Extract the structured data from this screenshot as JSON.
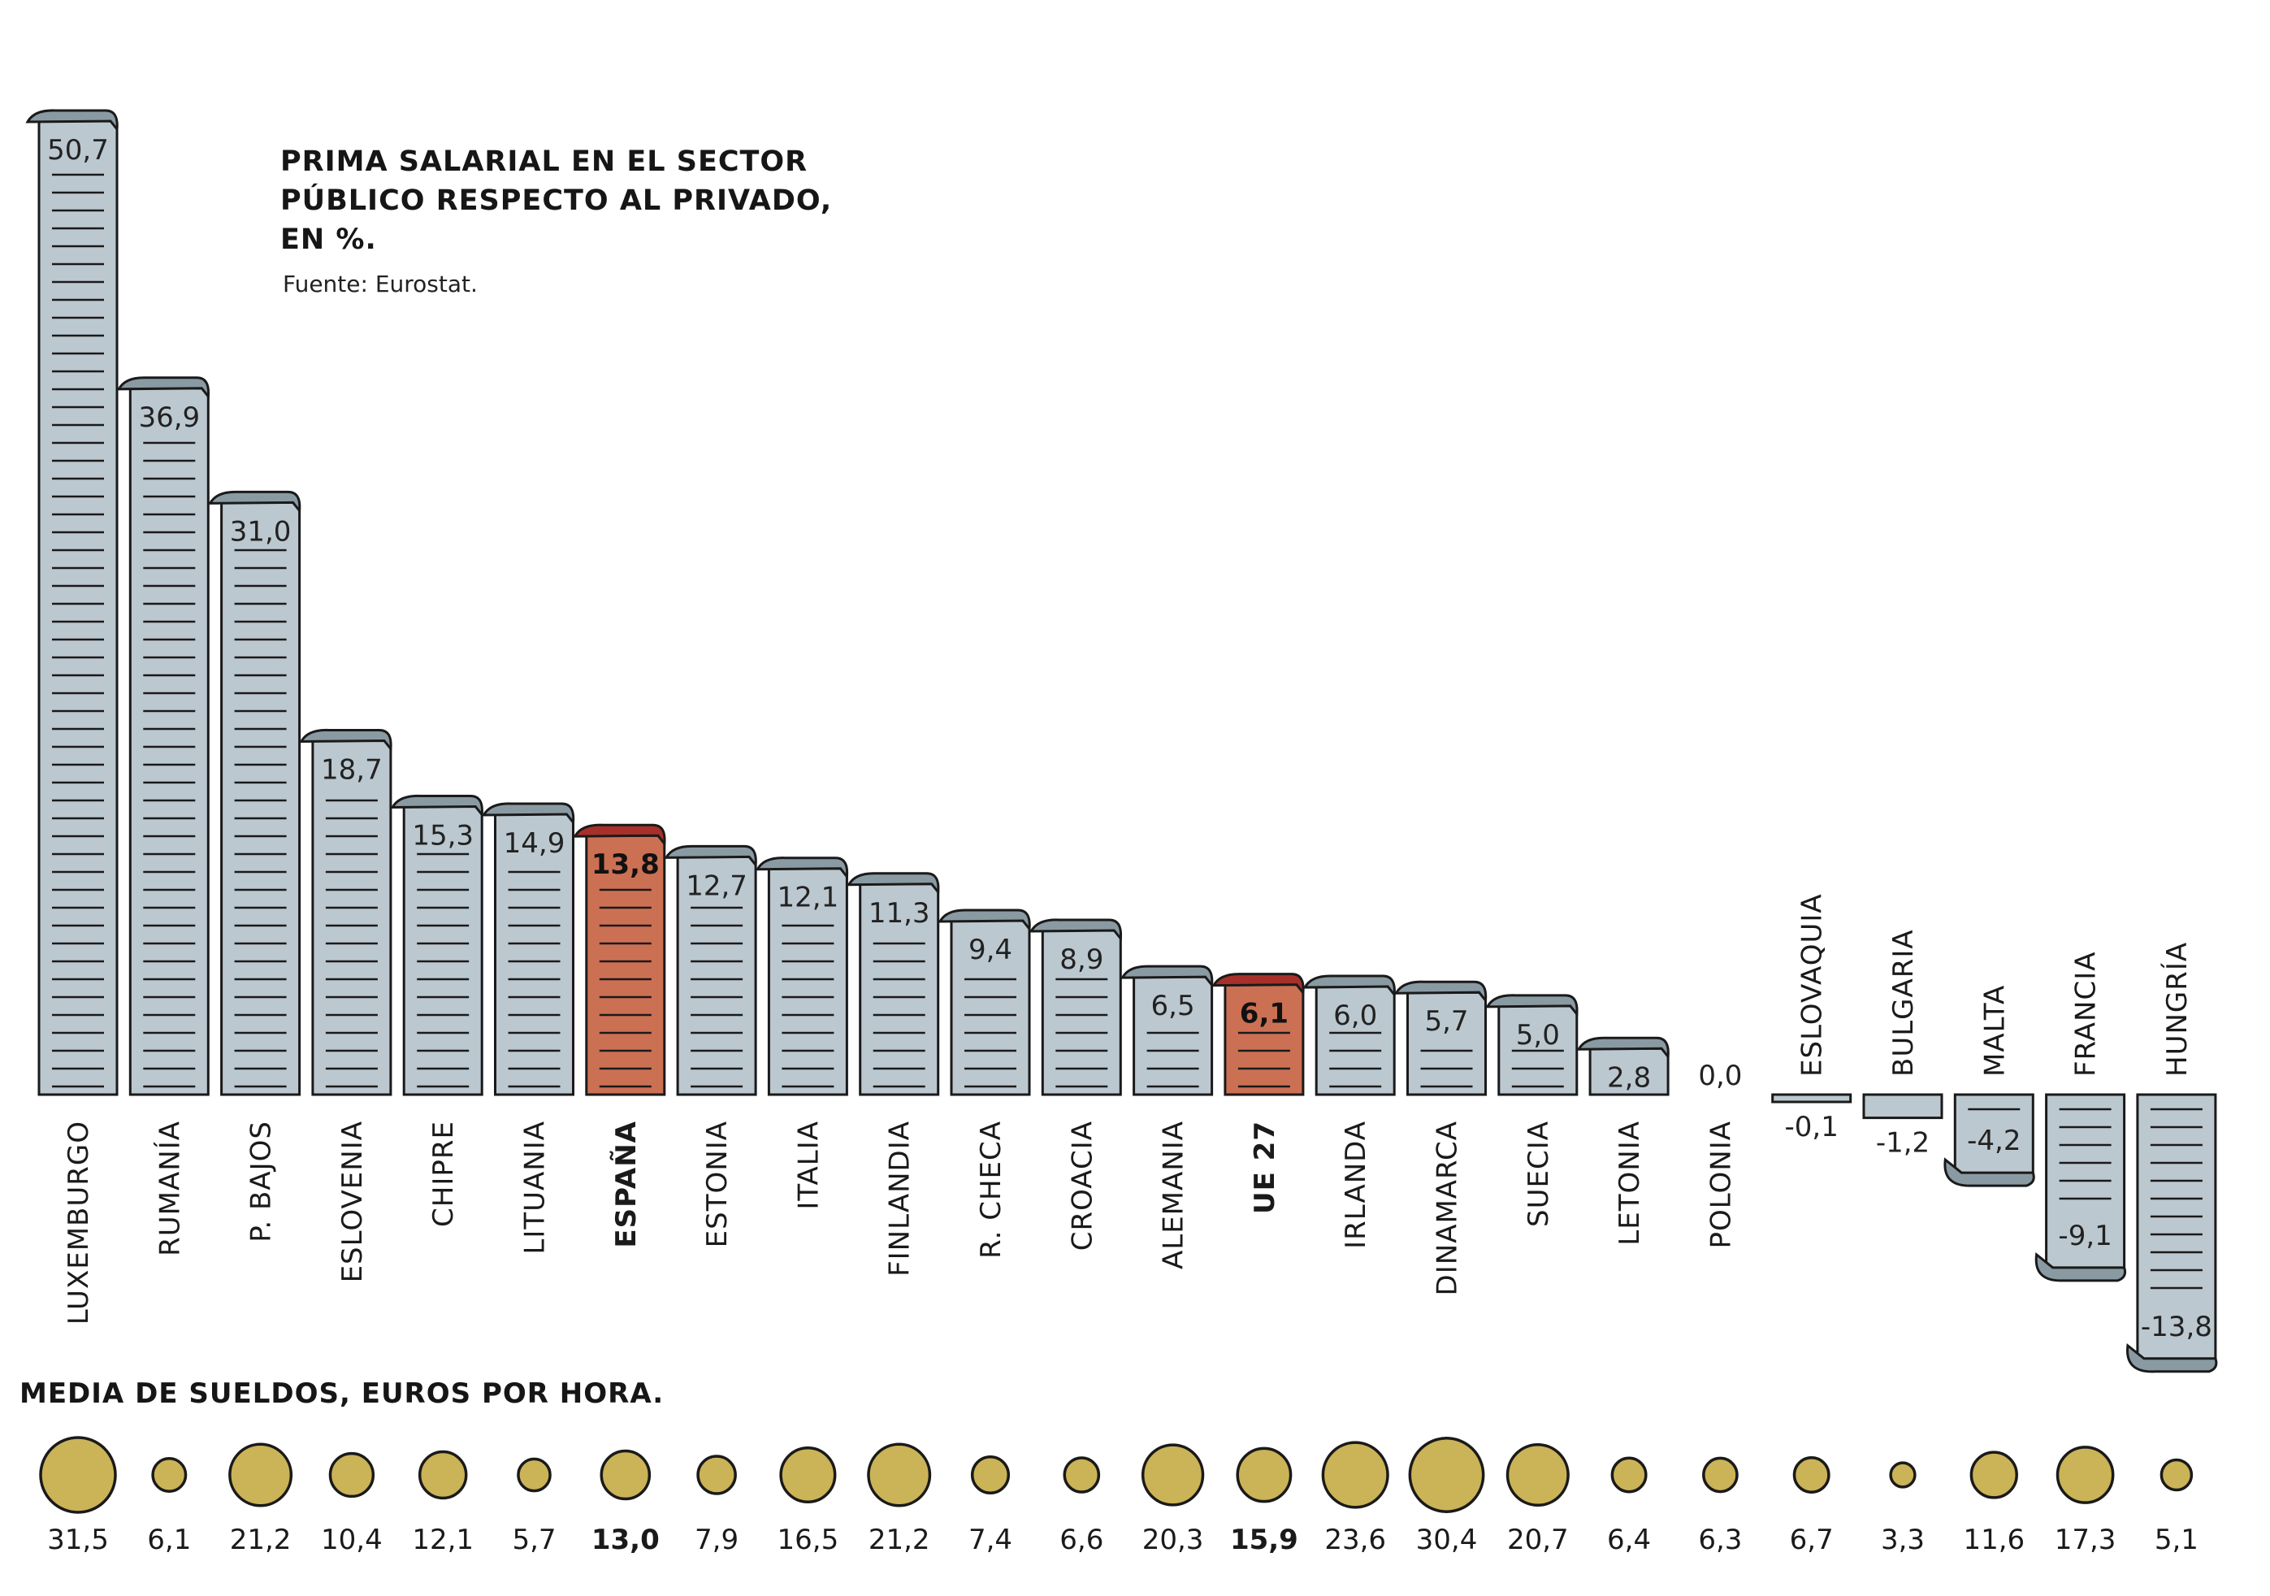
{
  "chart_data": [
    {
      "type": "bar",
      "title": "PRIMA SALARIAL EN EL SECTOR PÚBLICO RESPECTO AL PRIVADO, EN %.",
      "title_lines": [
        "PRIMA SALARIAL EN EL SECTOR",
        "PÚBLICO RESPECTO AL PRIVADO,",
        "EN %."
      ],
      "source": "Fuente: Eurostat.",
      "xlabel": "",
      "ylabel": "",
      "grid": false,
      "ylim": [
        -13.8,
        50.7
      ],
      "categories": [
        "LUXEMBURGO",
        "RUMANÍA",
        "P. BAJOS",
        "ESLOVENIA",
        "CHIPRE",
        "LITUANIA",
        "ESPAÑA",
        "ESTONIA",
        "ITALIA",
        "FINLANDIA",
        "R. CHECA",
        "CROACIA",
        "ALEMANIA",
        "UE 27",
        "IRLANDA",
        "DINAMARCA",
        "SUECIA",
        "LETONIA",
        "POLONIA",
        "ESLOVAQUIA",
        "BULGARIA",
        "MALTA",
        "FRANCIA",
        "HUNGRÍA"
      ],
      "values": [
        50.7,
        36.9,
        31.0,
        18.7,
        15.3,
        14.9,
        13.8,
        12.7,
        12.1,
        11.3,
        9.4,
        8.9,
        6.5,
        6.1,
        6.0,
        5.7,
        5.0,
        2.8,
        0.0,
        -0.1,
        -1.2,
        -4.2,
        -9.1,
        -13.8
      ],
      "value_labels": [
        "50,7",
        "36,9",
        "31,0",
        "18,7",
        "15,3",
        "14,9",
        "13,8",
        "12,7",
        "12,1",
        "11,3",
        "9,4",
        "8,9",
        "6,5",
        "6,1",
        "6,0",
        "5,7",
        "5,0",
        "2,8",
        "0,0",
        "-0,1",
        "-1,2",
        "-4,2",
        "-9,1",
        "-13,8"
      ],
      "highlighted": [
        "ESPAÑA",
        "UE 27"
      ],
      "colors": {
        "bar": "#bcc8cf",
        "bar_curl": "#8a9aa3",
        "highlight": "#cc7054",
        "highlight_curl": "#a8302a",
        "outline": "#1a1a1a"
      }
    },
    {
      "type": "bubble",
      "title": "MEDIA DE SUELDOS, EUROS POR HORA.",
      "categories": [
        "LUXEMBURGO",
        "RUMANÍA",
        "P. BAJOS",
        "ESLOVENIA",
        "CHIPRE",
        "LITUANIA",
        "ESPAÑA",
        "ESTONIA",
        "ITALIA",
        "FINLANDIA",
        "R. CHECA",
        "CROACIA",
        "ALEMANIA",
        "UE 27",
        "IRLANDA",
        "DINAMARCA",
        "SUECIA",
        "LETONIA",
        "POLONIA",
        "ESLOVAQUIA",
        "BULGARIA",
        "MALTA",
        "FRANCIA",
        "HUNGRÍA"
      ],
      "values": [
        31.5,
        6.1,
        21.2,
        10.4,
        12.1,
        5.7,
        13.0,
        7.9,
        16.5,
        21.2,
        7.4,
        6.6,
        20.3,
        15.9,
        23.6,
        30.4,
        20.7,
        6.4,
        6.3,
        6.7,
        3.3,
        11.6,
        17.3,
        5.1
      ],
      "value_labels": [
        "31,5",
        "6,1",
        "21,2",
        "10,4",
        "12,1",
        "5,7",
        "13,0",
        "7,9",
        "16,5",
        "21,2",
        "7,4",
        "6,6",
        "20,3",
        "15,9",
        "23,6",
        "30,4",
        "20,7",
        "6,4",
        "6,3",
        "6,7",
        "3,3",
        "11,6",
        "17,3",
        "5,1"
      ],
      "highlighted": [
        "ESPAÑA",
        "UE 27"
      ],
      "colors": {
        "coin": "#cbb357",
        "outline": "#1a1a1a"
      }
    }
  ]
}
